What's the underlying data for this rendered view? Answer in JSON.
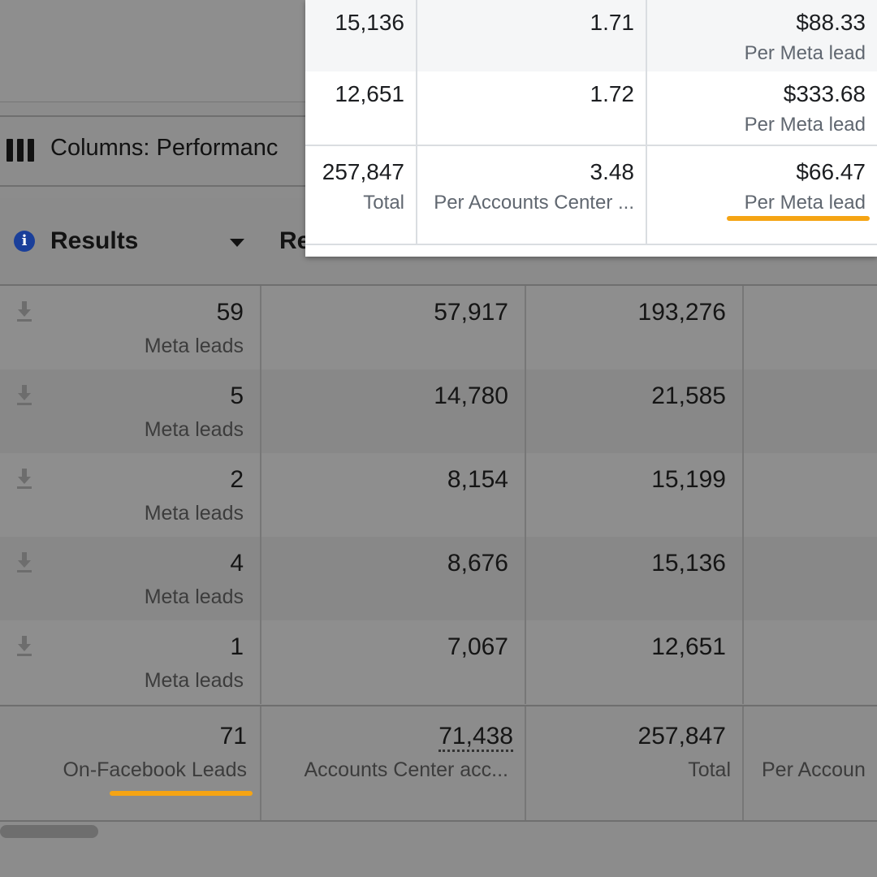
{
  "toolbar": {
    "columns_label": "Columns: Performanc"
  },
  "table": {
    "headers": [
      {
        "label": "Results"
      },
      {
        "label": "Re"
      }
    ],
    "rows": [
      {
        "results": "59",
        "results_unit": "Meta leads",
        "col2": "57,917",
        "col3": "193,276"
      },
      {
        "results": "5",
        "results_unit": "Meta leads",
        "col2": "14,780",
        "col3": "21,585"
      },
      {
        "results": "2",
        "results_unit": "Meta leads",
        "col2": "8,154",
        "col3": "15,199"
      },
      {
        "results": "4",
        "results_unit": "Meta leads",
        "col2": "8,676",
        "col3": "15,136"
      },
      {
        "results": "1",
        "results_unit": "Meta leads",
        "col2": "7,067",
        "col3": "12,651"
      }
    ],
    "totals": {
      "results": "71",
      "results_label": "On-Facebook Leads",
      "col2": "71,438",
      "col2_label": "Accounts Center acc...",
      "col3": "257,847",
      "col3_label": "Total",
      "col4_label": "Per Accoun"
    }
  },
  "panel": {
    "rows": [
      {
        "a": "15,136",
        "b": "1.71",
        "c": "$88.33",
        "c_sub": "Per Meta lead"
      },
      {
        "a": "12,651",
        "b": "1.72",
        "c": "$333.68",
        "c_sub": "Per Meta lead"
      },
      {
        "a": "257,847",
        "a_sub": "Total",
        "b": "3.48",
        "b_sub": "Per Accounts Center ...",
        "c": "$66.47",
        "c_sub": "Per Meta lead"
      }
    ]
  },
  "colors": {
    "highlight": "#f5a414",
    "info_icon": "#1a3f9a"
  }
}
